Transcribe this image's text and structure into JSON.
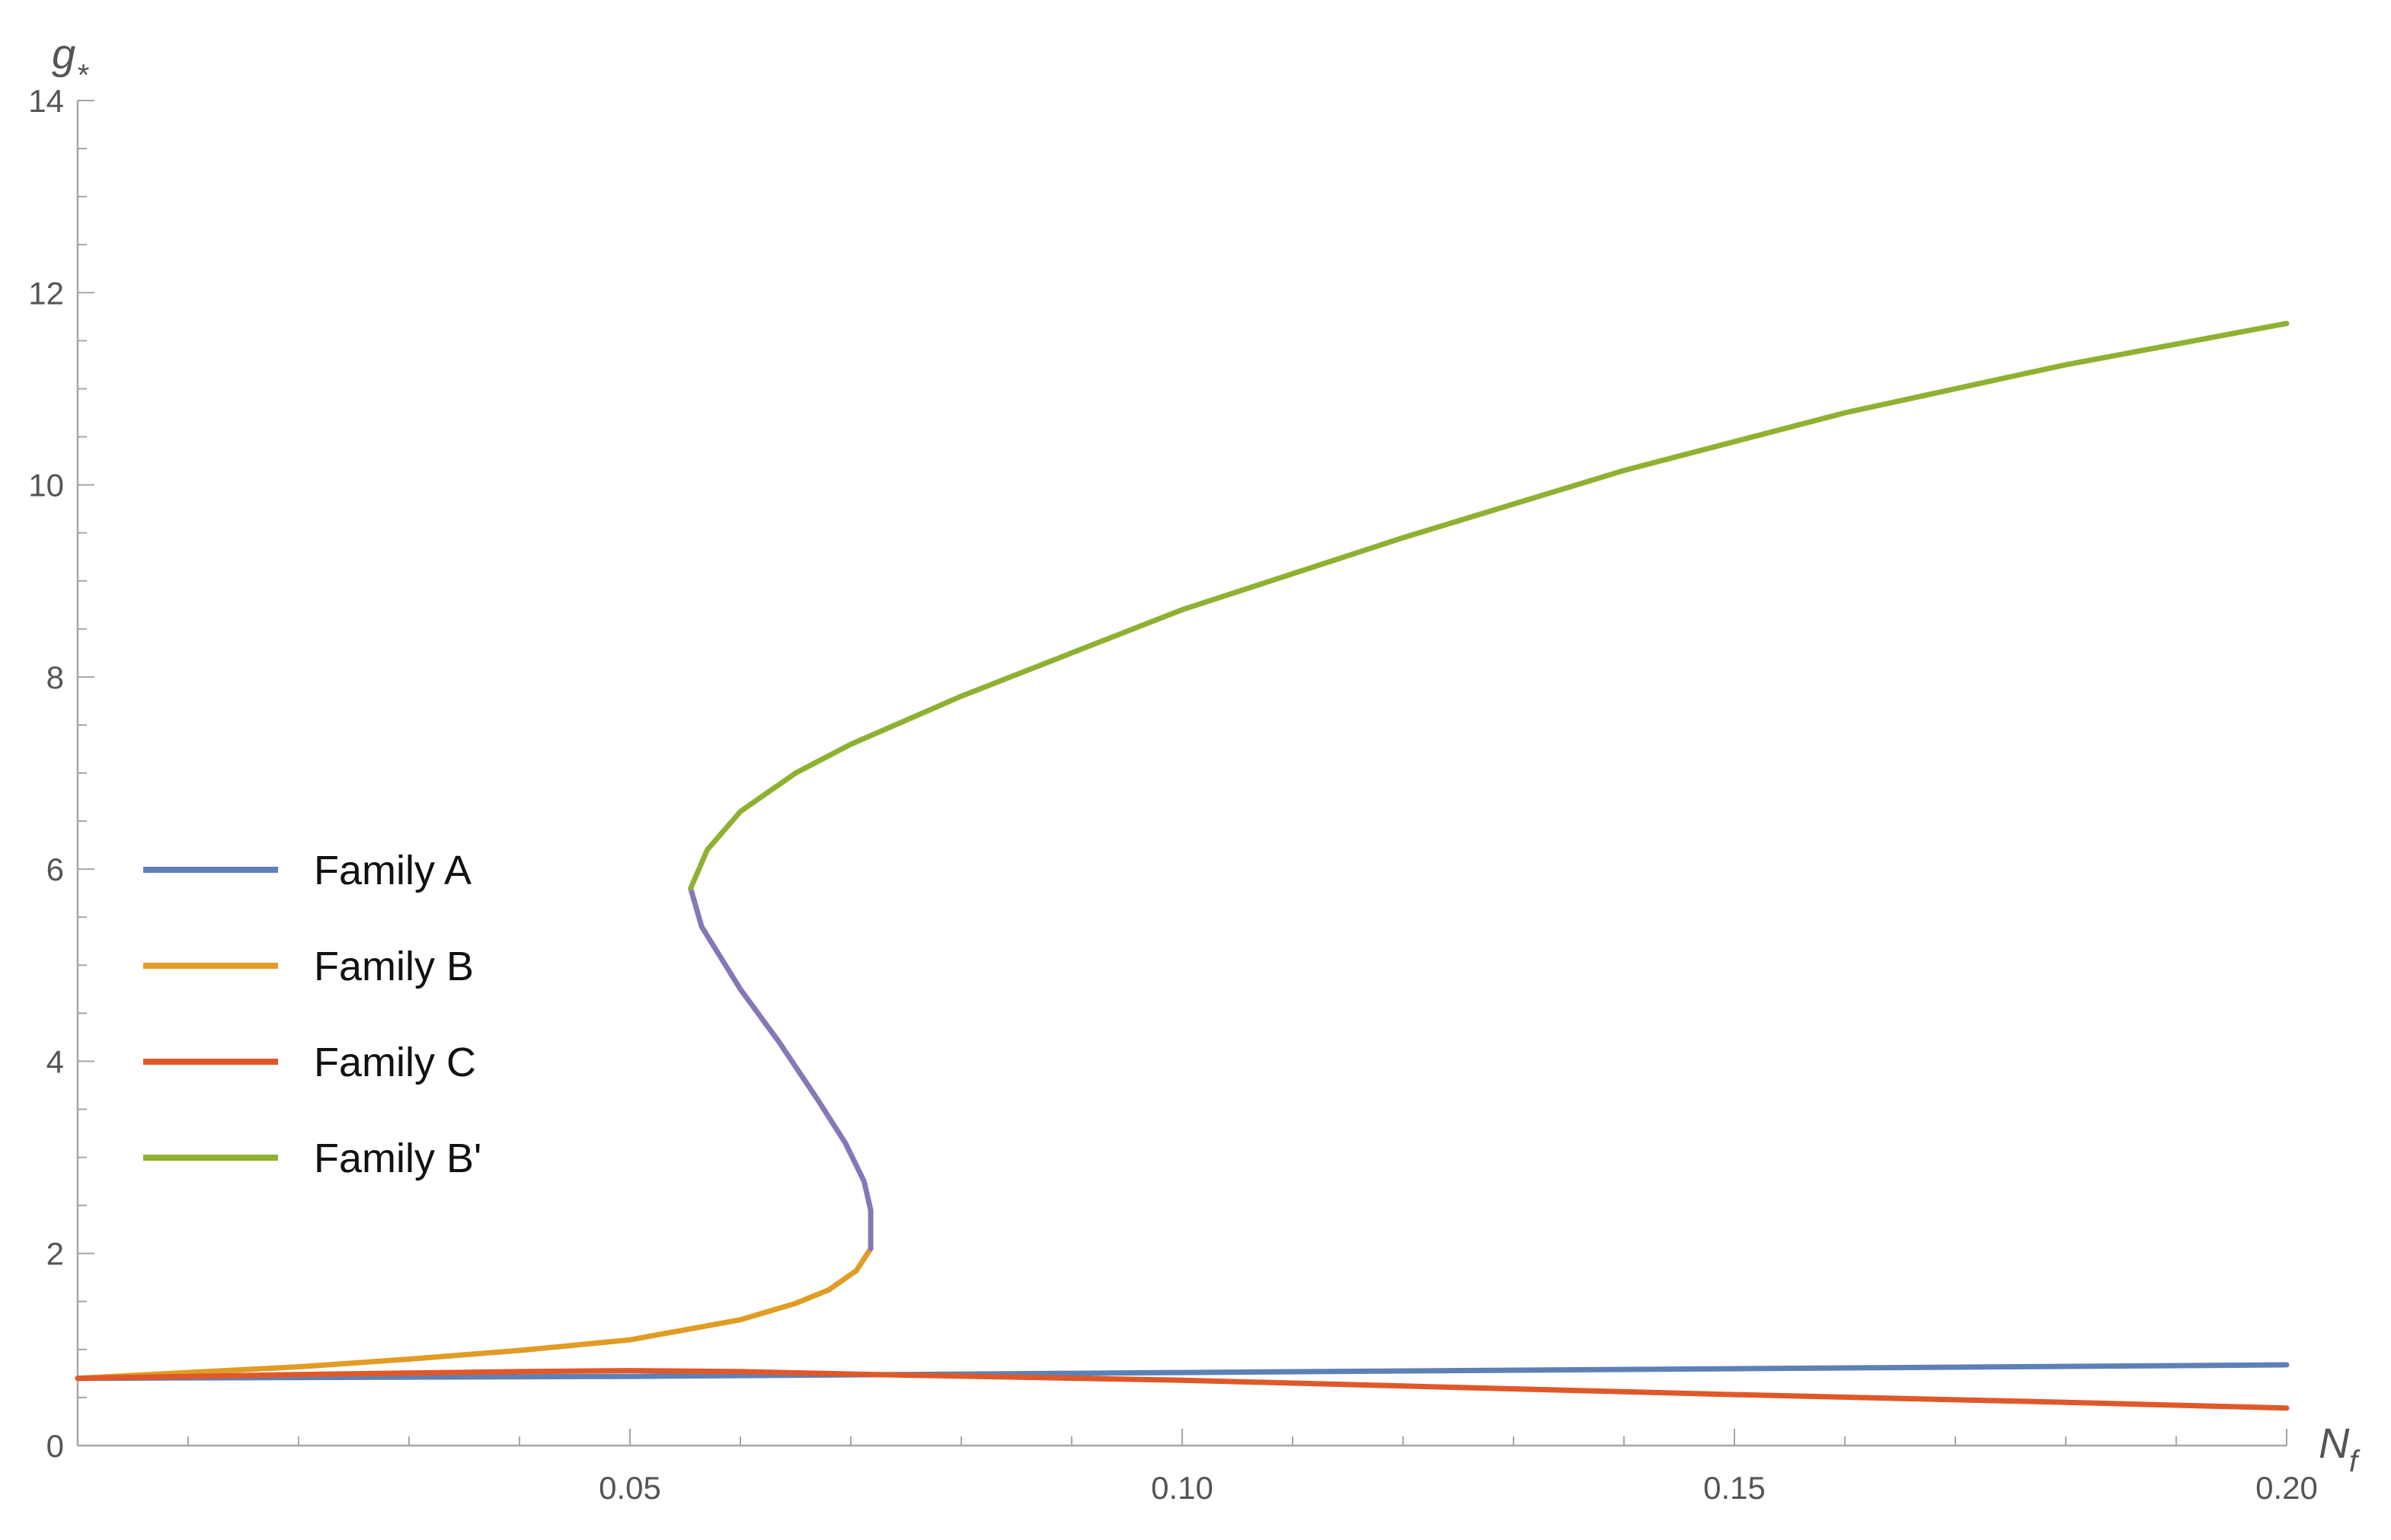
{
  "chart_data": {
    "type": "line",
    "title": "",
    "xlabel": {
      "main": "N",
      "sub": "f"
    },
    "ylabel": {
      "main": "g",
      "sub": "*"
    },
    "xlim": [
      0,
      0.2
    ],
    "ylim": [
      0,
      14
    ],
    "x_ticks": [
      {
        "value": 0.05,
        "label": "0.05"
      },
      {
        "value": 0.1,
        "label": "0.10"
      },
      {
        "value": 0.15,
        "label": "0.15"
      },
      {
        "value": 0.2,
        "label": "0.20"
      }
    ],
    "y_ticks": [
      {
        "value": 0,
        "label": "0"
      },
      {
        "value": 2,
        "label": "2"
      },
      {
        "value": 4,
        "label": "4"
      },
      {
        "value": 6,
        "label": "6"
      },
      {
        "value": 8,
        "label": "8"
      },
      {
        "value": 10,
        "label": "10"
      },
      {
        "value": 12,
        "label": "12"
      },
      {
        "value": 14,
        "label": "14"
      }
    ],
    "x_minor_step": 0.01,
    "y_minor_step": 0.5,
    "grid": false,
    "legend_position": "left-middle",
    "legend": [
      {
        "label": "Family A",
        "color": "#5e81b5"
      },
      {
        "label": "Family B",
        "color": "#e19c24"
      },
      {
        "label": "Family C",
        "color": "#e0582a"
      },
      {
        "label": "Family B'",
        "color": "#8fb131"
      }
    ],
    "series": [
      {
        "name": "Family A",
        "color": "#5e81b5",
        "points": [
          [
            0,
            0.7
          ],
          [
            0.05,
            0.72
          ],
          [
            0.1,
            0.76
          ],
          [
            0.15,
            0.8
          ],
          [
            0.2,
            0.84
          ]
        ]
      },
      {
        "name": "Family B",
        "color": "#e19c24",
        "points": [
          [
            0,
            0.7
          ],
          [
            0.01,
            0.76
          ],
          [
            0.02,
            0.82
          ],
          [
            0.03,
            0.9
          ],
          [
            0.04,
            0.99
          ],
          [
            0.05,
            1.1
          ],
          [
            0.06,
            1.31
          ],
          [
            0.065,
            1.48
          ],
          [
            0.068,
            1.62
          ],
          [
            0.0705,
            1.82
          ],
          [
            0.0718,
            2.05
          ]
        ]
      },
      {
        "name": "",
        "color": "#8777b8",
        "points": [
          [
            0.0718,
            2.05
          ],
          [
            0.0718,
            2.45
          ],
          [
            0.0712,
            2.75
          ],
          [
            0.0695,
            3.15
          ],
          [
            0.067,
            3.6
          ],
          [
            0.0635,
            4.2
          ],
          [
            0.06,
            4.75
          ],
          [
            0.0565,
            5.4
          ],
          [
            0.0555,
            5.8
          ]
        ]
      },
      {
        "name": "Family B'",
        "color": "#8fb131",
        "points": [
          [
            0.0555,
            5.8
          ],
          [
            0.057,
            6.2
          ],
          [
            0.06,
            6.6
          ],
          [
            0.065,
            7.0
          ],
          [
            0.07,
            7.3
          ],
          [
            0.08,
            7.8
          ],
          [
            0.09,
            8.25
          ],
          [
            0.1,
            8.7
          ],
          [
            0.12,
            9.45
          ],
          [
            0.14,
            10.15
          ],
          [
            0.16,
            10.75
          ],
          [
            0.18,
            11.25
          ],
          [
            0.2,
            11.68
          ]
        ]
      },
      {
        "name": "Family C",
        "color": "#e0582a",
        "points": [
          [
            0,
            0.7
          ],
          [
            0.02,
            0.74
          ],
          [
            0.04,
            0.77
          ],
          [
            0.05,
            0.78
          ],
          [
            0.06,
            0.77
          ],
          [
            0.072,
            0.74
          ],
          [
            0.1,
            0.68
          ],
          [
            0.12,
            0.62
          ],
          [
            0.15,
            0.53
          ],
          [
            0.18,
            0.45
          ],
          [
            0.2,
            0.39
          ]
        ]
      }
    ]
  }
}
